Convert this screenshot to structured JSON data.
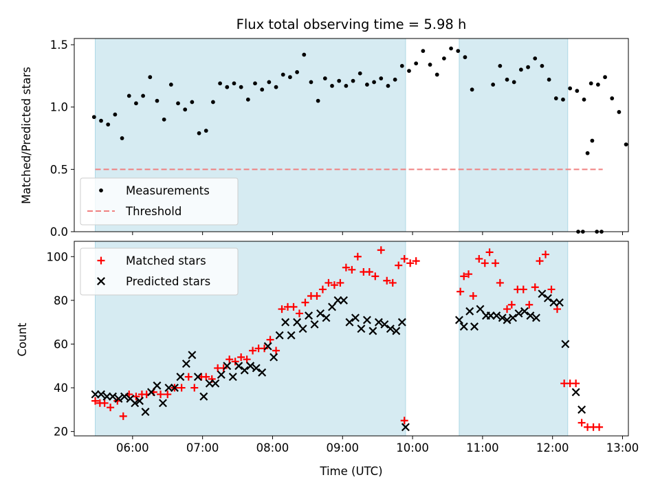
{
  "chart_data": [
    {
      "type": "scatter",
      "title": "Flux total observing time = 5.98 h",
      "xlabel": "",
      "ylabel": "Matched/Predicted stars",
      "xlim": [
        "05:10",
        "13:05"
      ],
      "ylim": [
        0,
        1.55
      ],
      "yticks": [
        "0.0",
        "0.5",
        "1.0",
        "1.5"
      ],
      "legend_position": "lower-left",
      "shaded_intervals": [
        [
          "05:28",
          "09:54"
        ],
        [
          "10:40",
          "12:13"
        ]
      ],
      "threshold": {
        "name": "Threshold",
        "value": 0.5,
        "x_range": [
          "05:28",
          "12:43"
        ],
        "color": "#f08080"
      },
      "series": [
        {
          "name": "Measurements",
          "color": "#000000",
          "points": [
            [
              "05:27",
              0.92
            ],
            [
              "05:33",
              0.89
            ],
            [
              "05:39",
              0.86
            ],
            [
              "05:45",
              0.94
            ],
            [
              "05:51",
              0.75
            ],
            [
              "05:57",
              1.09
            ],
            [
              "06:03",
              1.03
            ],
            [
              "06:09",
              1.09
            ],
            [
              "06:15",
              1.24
            ],
            [
              "06:21",
              1.05
            ],
            [
              "06:27",
              0.9
            ],
            [
              "06:33",
              1.18
            ],
            [
              "06:39",
              1.03
            ],
            [
              "06:45",
              0.98
            ],
            [
              "06:51",
              1.04
            ],
            [
              "06:57",
              0.79
            ],
            [
              "07:03",
              0.81
            ],
            [
              "07:09",
              1.04
            ],
            [
              "07:15",
              1.19
            ],
            [
              "07:21",
              1.16
            ],
            [
              "07:27",
              1.19
            ],
            [
              "07:33",
              1.16
            ],
            [
              "07:39",
              1.06
            ],
            [
              "07:45",
              1.19
            ],
            [
              "07:51",
              1.14
            ],
            [
              "07:57",
              1.2
            ],
            [
              "08:03",
              1.16
            ],
            [
              "08:09",
              1.26
            ],
            [
              "08:15",
              1.24
            ],
            [
              "08:21",
              1.28
            ],
            [
              "08:27",
              1.42
            ],
            [
              "08:33",
              1.2
            ],
            [
              "08:39",
              1.05
            ],
            [
              "08:45",
              1.23
            ],
            [
              "08:51",
              1.17
            ],
            [
              "08:57",
              1.21
            ],
            [
              "09:03",
              1.17
            ],
            [
              "09:09",
              1.21
            ],
            [
              "09:15",
              1.27
            ],
            [
              "09:21",
              1.18
            ],
            [
              "09:27",
              1.2
            ],
            [
              "09:33",
              1.23
            ],
            [
              "09:39",
              1.17
            ],
            [
              "09:45",
              1.22
            ],
            [
              "09:51",
              1.33
            ],
            [
              "09:57",
              1.29
            ],
            [
              "10:03",
              1.35
            ],
            [
              "10:09",
              1.45
            ],
            [
              "10:15",
              1.34
            ],
            [
              "10:21",
              1.26
            ],
            [
              "10:27",
              1.39
            ],
            [
              "10:33",
              1.47
            ],
            [
              "10:39",
              1.45
            ],
            [
              "10:45",
              1.4
            ],
            [
              "10:51",
              1.14
            ],
            [
              "11:09",
              1.18
            ],
            [
              "11:15",
              1.33
            ],
            [
              "11:21",
              1.22
            ],
            [
              "11:27",
              1.2
            ],
            [
              "11:33",
              1.3
            ],
            [
              "11:39",
              1.32
            ],
            [
              "11:45",
              1.39
            ],
            [
              "11:51",
              1.33
            ],
            [
              "11:57",
              1.22
            ],
            [
              "12:03",
              1.07
            ],
            [
              "12:09",
              1.06
            ],
            [
              "12:15",
              1.15
            ],
            [
              "12:21",
              1.13
            ],
            [
              "12:27",
              1.06
            ],
            [
              "12:33",
              1.19
            ],
            [
              "12:39",
              1.18
            ],
            [
              "12:45",
              1.24
            ],
            [
              "12:51",
              1.07
            ],
            [
              "12:57",
              0.96
            ],
            [
              "13:03",
              0.7
            ],
            [
              "12:22",
              0.0
            ],
            [
              "12:26",
              0.0
            ],
            [
              "12:30",
              0.63
            ],
            [
              "12:34",
              0.73
            ],
            [
              "12:38",
              0.0
            ],
            [
              "12:42",
              0.0
            ]
          ]
        }
      ]
    },
    {
      "type": "scatter",
      "title": "",
      "xlabel": "Time (UTC)",
      "ylabel": "Count",
      "xlim": [
        "05:10",
        "13:05"
      ],
      "ylim": [
        18,
        107
      ],
      "xticks": [
        "06:00",
        "07:00",
        "08:00",
        "09:00",
        "10:00",
        "11:00",
        "12:00",
        "13:00"
      ],
      "yticks": [
        "20",
        "40",
        "60",
        "80",
        "100"
      ],
      "legend_position": "upper-left",
      "shaded_intervals": [
        [
          "05:28",
          "09:54"
        ],
        [
          "10:40",
          "12:13"
        ]
      ],
      "series": [
        {
          "name": "Matched stars",
          "color": "#ff0000",
          "marker": "plus",
          "points": [
            [
              "05:28",
              34
            ],
            [
              "05:32",
              33
            ],
            [
              "05:36",
              33
            ],
            [
              "05:41",
              31
            ],
            [
              "05:47",
              34
            ],
            [
              "05:52",
              27
            ],
            [
              "05:57",
              37
            ],
            [
              "06:03",
              36
            ],
            [
              "06:08",
              37
            ],
            [
              "06:12",
              37
            ],
            [
              "06:18",
              38
            ],
            [
              "06:24",
              37
            ],
            [
              "06:30",
              37
            ],
            [
              "06:36",
              40
            ],
            [
              "06:42",
              40
            ],
            [
              "06:48",
              45
            ],
            [
              "06:53",
              40
            ],
            [
              "06:59",
              45
            ],
            [
              "07:03",
              45
            ],
            [
              "07:08",
              44
            ],
            [
              "07:13",
              49
            ],
            [
              "07:18",
              49
            ],
            [
              "07:23",
              53
            ],
            [
              "07:28",
              52
            ],
            [
              "07:33",
              54
            ],
            [
              "07:38",
              53
            ],
            [
              "07:43",
              57
            ],
            [
              "07:48",
              58
            ],
            [
              "07:53",
              58
            ],
            [
              "07:58",
              62
            ],
            [
              "08:03",
              57
            ],
            [
              "08:08",
              76
            ],
            [
              "08:13",
              77
            ],
            [
              "08:18",
              77
            ],
            [
              "08:23",
              74
            ],
            [
              "08:28",
              79
            ],
            [
              "08:33",
              82
            ],
            [
              "08:38",
              82
            ],
            [
              "08:43",
              85
            ],
            [
              "08:48",
              88
            ],
            [
              "08:53",
              87
            ],
            [
              "08:58",
              88
            ],
            [
              "09:03",
              95
            ],
            [
              "09:08",
              94
            ],
            [
              "09:13",
              100
            ],
            [
              "09:18",
              93
            ],
            [
              "09:23",
              93
            ],
            [
              "09:28",
              91
            ],
            [
              "09:33",
              103
            ],
            [
              "09:38",
              89
            ],
            [
              "09:43",
              88
            ],
            [
              "09:48",
              96
            ],
            [
              "09:53",
              99
            ],
            [
              "09:58",
              97
            ],
            [
              "10:03",
              98
            ],
            [
              "09:53",
              25
            ],
            [
              "10:41",
              84
            ],
            [
              "10:44",
              91
            ],
            [
              "10:48",
              92
            ],
            [
              "10:52",
              82
            ],
            [
              "10:57",
              99
            ],
            [
              "11:02",
              97
            ],
            [
              "11:06",
              102
            ],
            [
              "11:11",
              97
            ],
            [
              "11:15",
              88
            ],
            [
              "11:21",
              76
            ],
            [
              "11:25",
              78
            ],
            [
              "11:30",
              85
            ],
            [
              "11:35",
              85
            ],
            [
              "11:40",
              78
            ],
            [
              "11:45",
              86
            ],
            [
              "11:49",
              98
            ],
            [
              "11:54",
              101
            ],
            [
              "11:59",
              85
            ],
            [
              "12:04",
              76
            ],
            [
              "12:10",
              42
            ],
            [
              "12:15",
              42
            ],
            [
              "12:20",
              42
            ],
            [
              "12:25",
              24
            ],
            [
              "12:30",
              22
            ],
            [
              "12:35",
              22
            ],
            [
              "12:40",
              22
            ]
          ]
        },
        {
          "name": "Predicted stars",
          "color": "#000000",
          "marker": "x",
          "points": [
            [
              "05:28",
              37
            ],
            [
              "05:33",
              37
            ],
            [
              "05:38",
              36
            ],
            [
              "05:43",
              36
            ],
            [
              "05:48",
              35
            ],
            [
              "05:53",
              36
            ],
            [
              "05:58",
              35
            ],
            [
              "06:02",
              33
            ],
            [
              "06:06",
              34
            ],
            [
              "06:11",
              29
            ],
            [
              "06:16",
              38
            ],
            [
              "06:21",
              41
            ],
            [
              "06:26",
              33
            ],
            [
              "06:31",
              40
            ],
            [
              "06:36",
              40
            ],
            [
              "06:41",
              45
            ],
            [
              "06:46",
              51
            ],
            [
              "06:51",
              55
            ],
            [
              "06:56",
              45
            ],
            [
              "07:01",
              36
            ],
            [
              "07:06",
              42
            ],
            [
              "07:11",
              42
            ],
            [
              "07:16",
              46
            ],
            [
              "07:21",
              50
            ],
            [
              "07:26",
              45
            ],
            [
              "07:31",
              50
            ],
            [
              "07:36",
              48
            ],
            [
              "07:41",
              50
            ],
            [
              "07:46",
              49
            ],
            [
              "07:51",
              47
            ],
            [
              "07:56",
              59
            ],
            [
              "08:01",
              54
            ],
            [
              "08:06",
              64
            ],
            [
              "08:11",
              70
            ],
            [
              "08:16",
              64
            ],
            [
              "08:21",
              70
            ],
            [
              "08:26",
              67
            ],
            [
              "08:31",
              73
            ],
            [
              "08:36",
              69
            ],
            [
              "08:41",
              74
            ],
            [
              "08:46",
              72
            ],
            [
              "08:51",
              77
            ],
            [
              "08:56",
              80
            ],
            [
              "09:01",
              80
            ],
            [
              "09:06",
              70
            ],
            [
              "09:11",
              72
            ],
            [
              "09:16",
              67
            ],
            [
              "09:21",
              71
            ],
            [
              "09:26",
              66
            ],
            [
              "09:31",
              70
            ],
            [
              "09:36",
              69
            ],
            [
              "09:41",
              67
            ],
            [
              "09:46",
              66
            ],
            [
              "09:51",
              70
            ],
            [
              "09:54",
              22
            ],
            [
              "10:40",
              71
            ],
            [
              "10:44",
              68
            ],
            [
              "10:49",
              75
            ],
            [
              "10:53",
              68
            ],
            [
              "10:58",
              76
            ],
            [
              "11:03",
              73
            ],
            [
              "11:07",
              73
            ],
            [
              "11:12",
              73
            ],
            [
              "11:17",
              72
            ],
            [
              "11:21",
              71
            ],
            [
              "11:26",
              72
            ],
            [
              "11:31",
              74
            ],
            [
              "11:36",
              75
            ],
            [
              "11:41",
              73
            ],
            [
              "11:46",
              72
            ],
            [
              "11:51",
              83
            ],
            [
              "11:56",
              81
            ],
            [
              "12:01",
              79
            ],
            [
              "12:06",
              79
            ],
            [
              "12:11",
              60
            ],
            [
              "12:20",
              38
            ],
            [
              "12:25",
              30
            ]
          ]
        }
      ]
    }
  ]
}
